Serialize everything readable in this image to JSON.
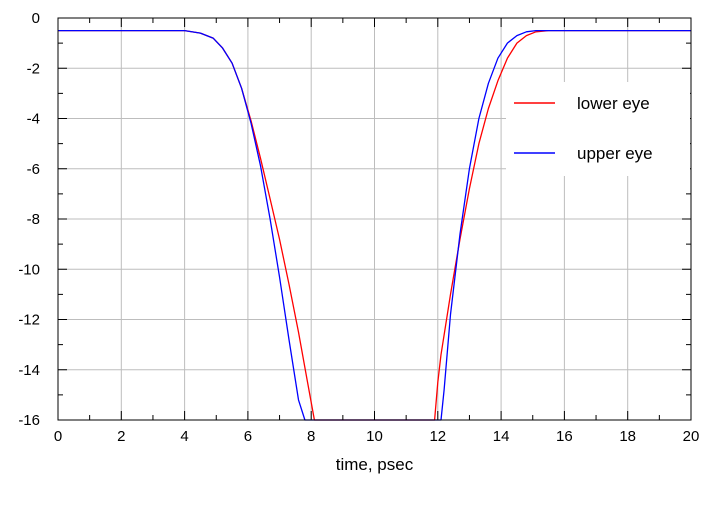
{
  "chart_data": {
    "type": "line",
    "title": "",
    "xlabel": "time, psec",
    "ylabel": "",
    "xlim": [
      0,
      20
    ],
    "ylim": [
      -16,
      0
    ],
    "x_ticks": [
      0,
      2,
      4,
      6,
      8,
      10,
      12,
      14,
      16,
      18,
      20
    ],
    "y_ticks": [
      0,
      -2,
      -4,
      -6,
      -8,
      -10,
      -12,
      -14,
      -16
    ],
    "x_tick_labels": [
      "0",
      "2",
      "4",
      "6",
      "8",
      "10",
      "12",
      "14",
      "16",
      "18",
      "20"
    ],
    "y_tick_labels": [
      "0",
      "-2",
      "-4",
      "-6",
      "-8",
      "-10",
      "-12",
      "-14",
      "-16"
    ],
    "grid": true,
    "legend_position": "right",
    "series": [
      {
        "name": "lower eye",
        "color": "#ff0000",
        "x": [
          0,
          4.0,
          4.5,
          4.9,
          5.2,
          5.5,
          5.8,
          6.1,
          6.4,
          6.7,
          7.0,
          7.3,
          7.6,
          7.9,
          8.1,
          8.3,
          11.9,
          12.0,
          12.1,
          12.4,
          12.7,
          13.0,
          13.3,
          13.6,
          13.9,
          14.2,
          14.5,
          14.8,
          15.1,
          15.5,
          20
        ],
        "y": [
          -0.5,
          -0.5,
          -0.6,
          -0.8,
          -1.2,
          -1.8,
          -2.8,
          -4.1,
          -5.6,
          -7.2,
          -8.8,
          -10.6,
          -12.5,
          -14.6,
          -16,
          -16,
          -16,
          -14.5,
          -13.4,
          -11.0,
          -8.8,
          -6.8,
          -5.0,
          -3.6,
          -2.5,
          -1.6,
          -1.0,
          -0.7,
          -0.55,
          -0.5,
          -0.5
        ]
      },
      {
        "name": "upper eye",
        "color": "#0000ff",
        "x": [
          0,
          4.0,
          4.5,
          4.9,
          5.2,
          5.5,
          5.8,
          6.1,
          6.4,
          6.7,
          7.0,
          7.3,
          7.6,
          7.8,
          8.3,
          11.9,
          12.1,
          12.2,
          12.4,
          12.7,
          13.0,
          13.3,
          13.6,
          13.9,
          14.2,
          14.5,
          14.8,
          15.1,
          15.5,
          20
        ],
        "y": [
          -0.5,
          -0.5,
          -0.6,
          -0.8,
          -1.2,
          -1.8,
          -2.8,
          -4.2,
          -5.9,
          -8.0,
          -10.3,
          -12.8,
          -15.2,
          -16,
          -16,
          -16,
          -16,
          -14.8,
          -11.8,
          -8.6,
          -6.0,
          -4.0,
          -2.6,
          -1.6,
          -1.0,
          -0.7,
          -0.55,
          -0.5,
          -0.5,
          -0.5
        ]
      }
    ]
  }
}
